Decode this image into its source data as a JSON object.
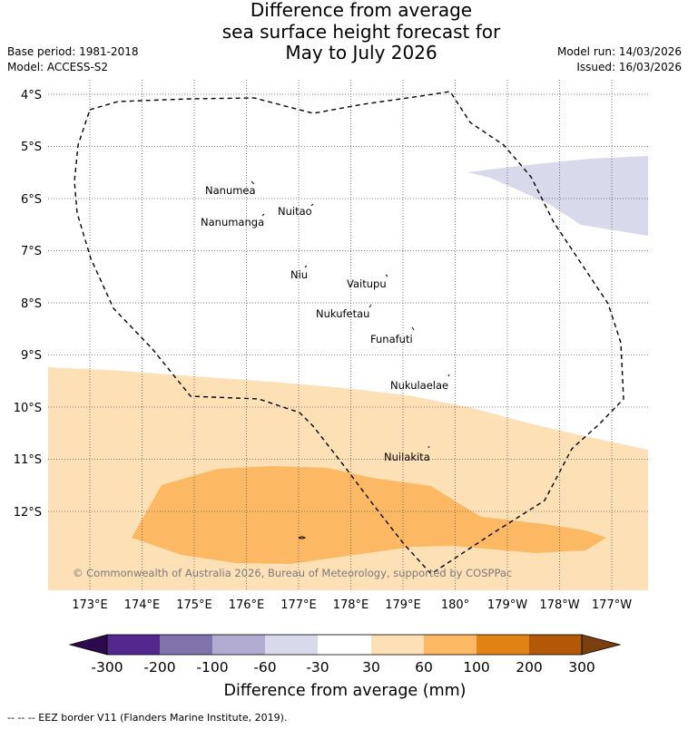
{
  "header": {
    "title_line1": "Difference from average",
    "title_line2": "sea surface height forecast for",
    "title_line3": "May to July 2026",
    "base_period": "Base period: 1981-2018",
    "model": "Model: ACCESS-S2",
    "model_run": "Model run: 14/03/2026",
    "issued": "Issued: 16/03/2026"
  },
  "map": {
    "lat_labels": [
      "4°S",
      "5°S",
      "6°S",
      "7°S",
      "8°S",
      "9°S",
      "10°S",
      "11°S",
      "12°S"
    ],
    "lon_labels": [
      "173°E",
      "174°E",
      "175°E",
      "176°E",
      "177°E",
      "178°E",
      "179°E",
      "180°",
      "179°W",
      "178°W",
      "177°W"
    ],
    "islands": [
      {
        "name": "Nanumea"
      },
      {
        "name": "Nuitao"
      },
      {
        "name": "Nanumanga"
      },
      {
        "name": "Niu"
      },
      {
        "name": "Vaitupu"
      },
      {
        "name": "Nukufetau"
      },
      {
        "name": "Funafuti"
      },
      {
        "name": "Nukulaelae"
      },
      {
        "name": "Nuilakita"
      }
    ],
    "copyright": "© Commonwealth of Australia 2026, Bureau of Meteorology, supported by COSPPac"
  },
  "colorbar": {
    "title": "Difference from average (mm)",
    "tick_labels": [
      "-300",
      "-200",
      "-100",
      "-60",
      "-30",
      "30",
      "60",
      "100",
      "200",
      "300"
    ],
    "under_color": "#2d0a4e",
    "over_color": "#7a3f0e",
    "bins": [
      {
        "from": -300,
        "to": -200,
        "color": "#54278f"
      },
      {
        "from": -200,
        "to": -100,
        "color": "#8073ac"
      },
      {
        "from": -100,
        "to": -60,
        "color": "#b2abd2"
      },
      {
        "from": -60,
        "to": -30,
        "color": "#d8daeb"
      },
      {
        "from": -30,
        "to": 30,
        "color": "#ffffff"
      },
      {
        "from": 30,
        "to": 60,
        "color": "#fee0b6"
      },
      {
        "from": 60,
        "to": 100,
        "color": "#fdb863"
      },
      {
        "from": 100,
        "to": 200,
        "color": "#e08214"
      },
      {
        "from": 200,
        "to": 300,
        "color": "#b35806"
      }
    ]
  },
  "footer": {
    "legend_text": "--  --  -- EEZ border V11 (Flanders Marine Institute, 2019)."
  }
}
